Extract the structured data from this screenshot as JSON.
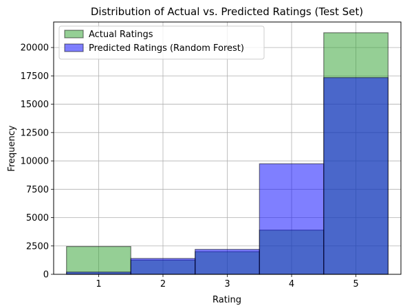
{
  "chart_data": {
    "type": "bar",
    "title": "Distribution of Actual vs. Predicted Ratings (Test Set)",
    "xlabel": "Rating",
    "ylabel": "Frequency",
    "categories": [
      "1",
      "2",
      "3",
      "4",
      "5"
    ],
    "xlim": [
      0.3,
      5.7
    ],
    "ylim": [
      0,
      22250
    ],
    "yticks": [
      0,
      2500,
      5000,
      7500,
      10000,
      12500,
      15000,
      17500,
      20000
    ],
    "grid": true,
    "legend_position": "top-left",
    "series": [
      {
        "name": "Actual Ratings",
        "color": "#2ca02c",
        "values": [
          2450,
          1250,
          2000,
          3900,
          21300
        ]
      },
      {
        "name": "Predicted Ratings (Random Forest)",
        "color": "#0000ff",
        "values": [
          200,
          1400,
          2200,
          9750,
          17350
        ]
      }
    ]
  }
}
